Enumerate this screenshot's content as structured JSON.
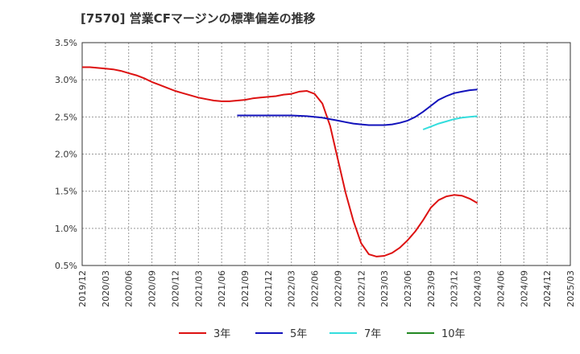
{
  "chart_data": {
    "type": "line",
    "title": "[7570]  営業CFマージンの標準偏差の推移",
    "xlabel": "",
    "ylabel": "",
    "ylim": [
      0.5,
      3.5
    ],
    "y_ticks": [
      "0.5%",
      "1.0%",
      "1.5%",
      "2.0%",
      "2.5%",
      "3.0%",
      "3.5%"
    ],
    "x_ticks": [
      "2019/12",
      "2020/03",
      "2020/06",
      "2020/09",
      "2020/12",
      "2021/03",
      "2021/06",
      "2021/09",
      "2021/12",
      "2022/03",
      "2022/06",
      "2022/09",
      "2022/12",
      "2023/03",
      "2023/06",
      "2023/09",
      "2023/12",
      "2024/03",
      "2024/06",
      "2024/09",
      "2024/12",
      "2025/03"
    ],
    "grid": true,
    "legend_position": "bottom",
    "series": [
      {
        "name": "3年",
        "color": "#dd1111",
        "points": [
          [
            "2019/12",
            3.17
          ],
          [
            "2020/01",
            3.17
          ],
          [
            "2020/02",
            3.16
          ],
          [
            "2020/03",
            3.15
          ],
          [
            "2020/04",
            3.14
          ],
          [
            "2020/05",
            3.12
          ],
          [
            "2020/06",
            3.09
          ],
          [
            "2020/07",
            3.06
          ],
          [
            "2020/08",
            3.02
          ],
          [
            "2020/09",
            2.97
          ],
          [
            "2020/10",
            2.93
          ],
          [
            "2020/11",
            2.89
          ],
          [
            "2020/12",
            2.85
          ],
          [
            "2021/01",
            2.82
          ],
          [
            "2021/02",
            2.79
          ],
          [
            "2021/03",
            2.76
          ],
          [
            "2021/04",
            2.74
          ],
          [
            "2021/05",
            2.72
          ],
          [
            "2021/06",
            2.71
          ],
          [
            "2021/07",
            2.71
          ],
          [
            "2021/08",
            2.72
          ],
          [
            "2021/09",
            2.73
          ],
          [
            "2021/10",
            2.75
          ],
          [
            "2021/11",
            2.76
          ],
          [
            "2021/12",
            2.77
          ],
          [
            "2022/01",
            2.78
          ],
          [
            "2022/02",
            2.8
          ],
          [
            "2022/03",
            2.81
          ],
          [
            "2022/04",
            2.84
          ],
          [
            "2022/05",
            2.85
          ],
          [
            "2022/06",
            2.81
          ],
          [
            "2022/07",
            2.68
          ],
          [
            "2022/08",
            2.38
          ],
          [
            "2022/09",
            1.93
          ],
          [
            "2022/10",
            1.48
          ],
          [
            "2022/11",
            1.1
          ],
          [
            "2022/12",
            0.8
          ],
          [
            "2023/01",
            0.65
          ],
          [
            "2023/02",
            0.62
          ],
          [
            "2023/03",
            0.63
          ],
          [
            "2023/04",
            0.67
          ],
          [
            "2023/05",
            0.74
          ],
          [
            "2023/06",
            0.84
          ],
          [
            "2023/07",
            0.96
          ],
          [
            "2023/08",
            1.11
          ],
          [
            "2023/09",
            1.28
          ],
          [
            "2023/10",
            1.38
          ],
          [
            "2023/11",
            1.43
          ],
          [
            "2023/12",
            1.45
          ],
          [
            "2024/01",
            1.44
          ],
          [
            "2024/02",
            1.4
          ],
          [
            "2024/03",
            1.34
          ]
        ]
      },
      {
        "name": "5年",
        "color": "#1111bb",
        "points": [
          [
            "2021/08",
            2.52
          ],
          [
            "2021/09",
            2.52
          ],
          [
            "2021/12",
            2.52
          ],
          [
            "2022/03",
            2.52
          ],
          [
            "2022/05",
            2.51
          ],
          [
            "2022/07",
            2.49
          ],
          [
            "2022/08",
            2.47
          ],
          [
            "2022/09",
            2.45
          ],
          [
            "2022/10",
            2.43
          ],
          [
            "2022/11",
            2.41
          ],
          [
            "2022/12",
            2.4
          ],
          [
            "2023/01",
            2.39
          ],
          [
            "2023/02",
            2.39
          ],
          [
            "2023/03",
            2.39
          ],
          [
            "2023/04",
            2.4
          ],
          [
            "2023/05",
            2.42
          ],
          [
            "2023/06",
            2.45
          ],
          [
            "2023/07",
            2.5
          ],
          [
            "2023/08",
            2.57
          ],
          [
            "2023/09",
            2.65
          ],
          [
            "2023/10",
            2.73
          ],
          [
            "2023/11",
            2.78
          ],
          [
            "2023/12",
            2.82
          ],
          [
            "2024/01",
            2.84
          ],
          [
            "2024/02",
            2.86
          ],
          [
            "2024/03",
            2.87
          ]
        ]
      },
      {
        "name": "7年",
        "color": "#33dddd",
        "points": [
          [
            "2023/08",
            2.33
          ],
          [
            "2023/09",
            2.37
          ],
          [
            "2023/10",
            2.41
          ],
          [
            "2023/11",
            2.44
          ],
          [
            "2023/12",
            2.47
          ],
          [
            "2024/01",
            2.49
          ],
          [
            "2024/02",
            2.5
          ],
          [
            "2024/03",
            2.51
          ]
        ]
      },
      {
        "name": "10年",
        "color": "#228822",
        "points": []
      }
    ]
  }
}
